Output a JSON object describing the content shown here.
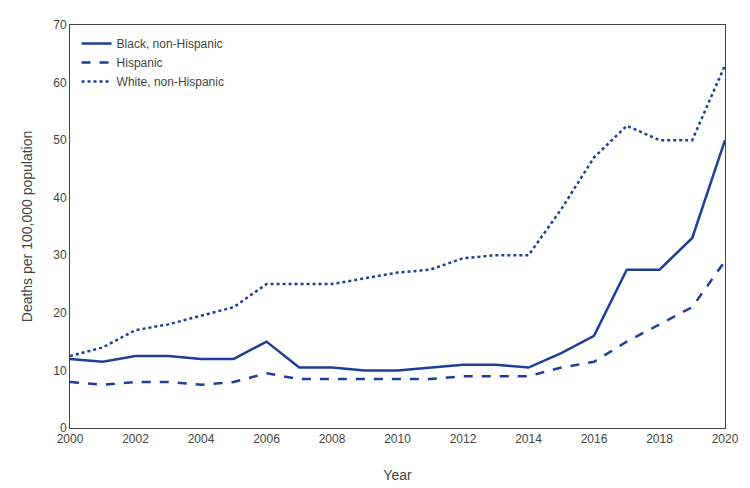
{
  "chart_data": {
    "type": "line",
    "xlabel": "Year",
    "ylabel": "Deaths per 100,000 population",
    "x": [
      2000,
      2001,
      2002,
      2003,
      2004,
      2005,
      2006,
      2007,
      2008,
      2009,
      2010,
      2011,
      2012,
      2013,
      2014,
      2015,
      2016,
      2017,
      2018,
      2019,
      2020
    ],
    "series": [
      {
        "name": "Black, non-Hispanic",
        "color": "#1e3f96",
        "line_style": "solid",
        "values": [
          12,
          11.5,
          12.5,
          12.5,
          12,
          12,
          15,
          10.5,
          10.5,
          10,
          10,
          10.5,
          11,
          11,
          10.5,
          13,
          16,
          27.5,
          27.5,
          33,
          50
        ]
      },
      {
        "name": "Hispanic",
        "color": "#1e3f96",
        "line_style": "dashed",
        "values": [
          8,
          7.5,
          8,
          8,
          7.5,
          8,
          9.5,
          8.5,
          8.5,
          8.5,
          8.5,
          8.5,
          9,
          9,
          9,
          10.5,
          11.5,
          15,
          18,
          21,
          29
        ]
      },
      {
        "name": "White, non-Hispanic",
        "color": "#1e3f96",
        "line_style": "dotted",
        "values": [
          12.5,
          14,
          17,
          18,
          19.5,
          21,
          25,
          25,
          25,
          26,
          27,
          27.5,
          29.5,
          30,
          30,
          38,
          47,
          52.5,
          50,
          50,
          63
        ]
      }
    ],
    "xlim": [
      2000,
      2020
    ],
    "xticks": [
      2000,
      2002,
      2004,
      2006,
      2008,
      2010,
      2012,
      2014,
      2016,
      2018,
      2020
    ],
    "ylim": [
      0,
      70
    ],
    "yticks": [
      0,
      10,
      20,
      30,
      40,
      50,
      60,
      70
    ],
    "grid": false,
    "legend": "upper left"
  }
}
